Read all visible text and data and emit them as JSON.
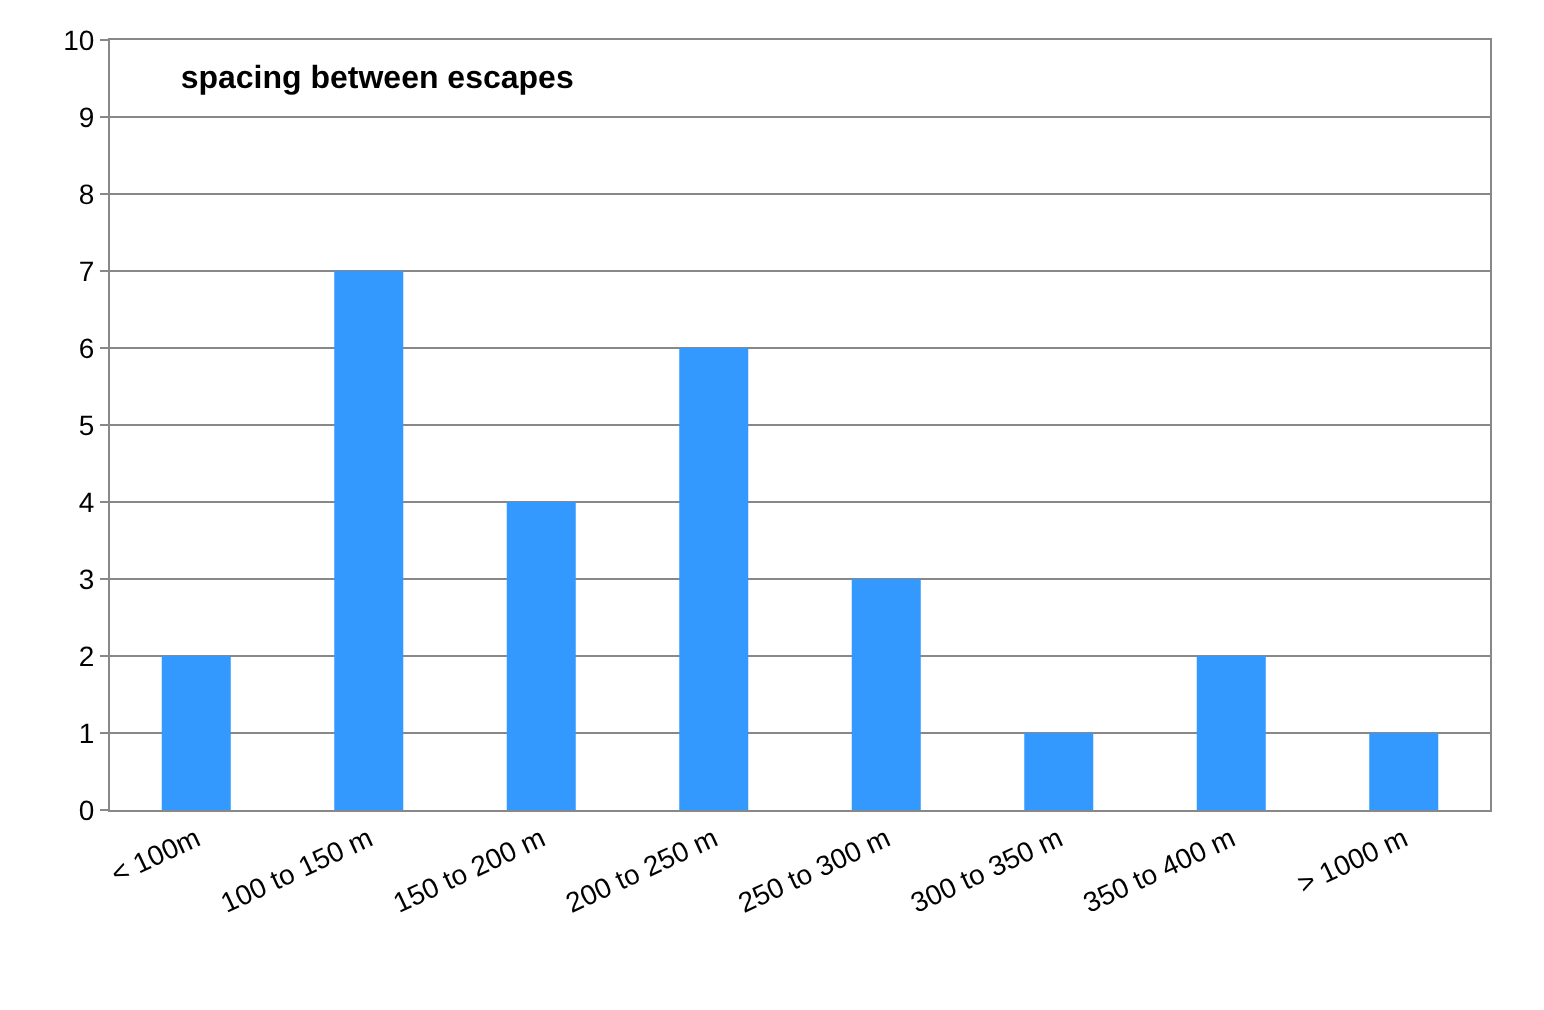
{
  "chart_data": {
    "type": "bar",
    "title": "spacing between escapes",
    "categories": [
      "< 100m",
      "100 to 150 m",
      "150 to 200 m",
      "200 to 250 m",
      "250 to 300 m",
      "300 to 350 m",
      "350 to 400 m",
      "> 1000 m"
    ],
    "values": [
      2,
      7,
      4,
      6,
      3,
      1,
      2,
      1
    ],
    "color": "#3399ff",
    "ylim": [
      0,
      10
    ],
    "yticks": [
      0,
      1,
      2,
      3,
      4,
      5,
      6,
      7,
      8,
      9,
      10
    ],
    "grid": "y"
  }
}
